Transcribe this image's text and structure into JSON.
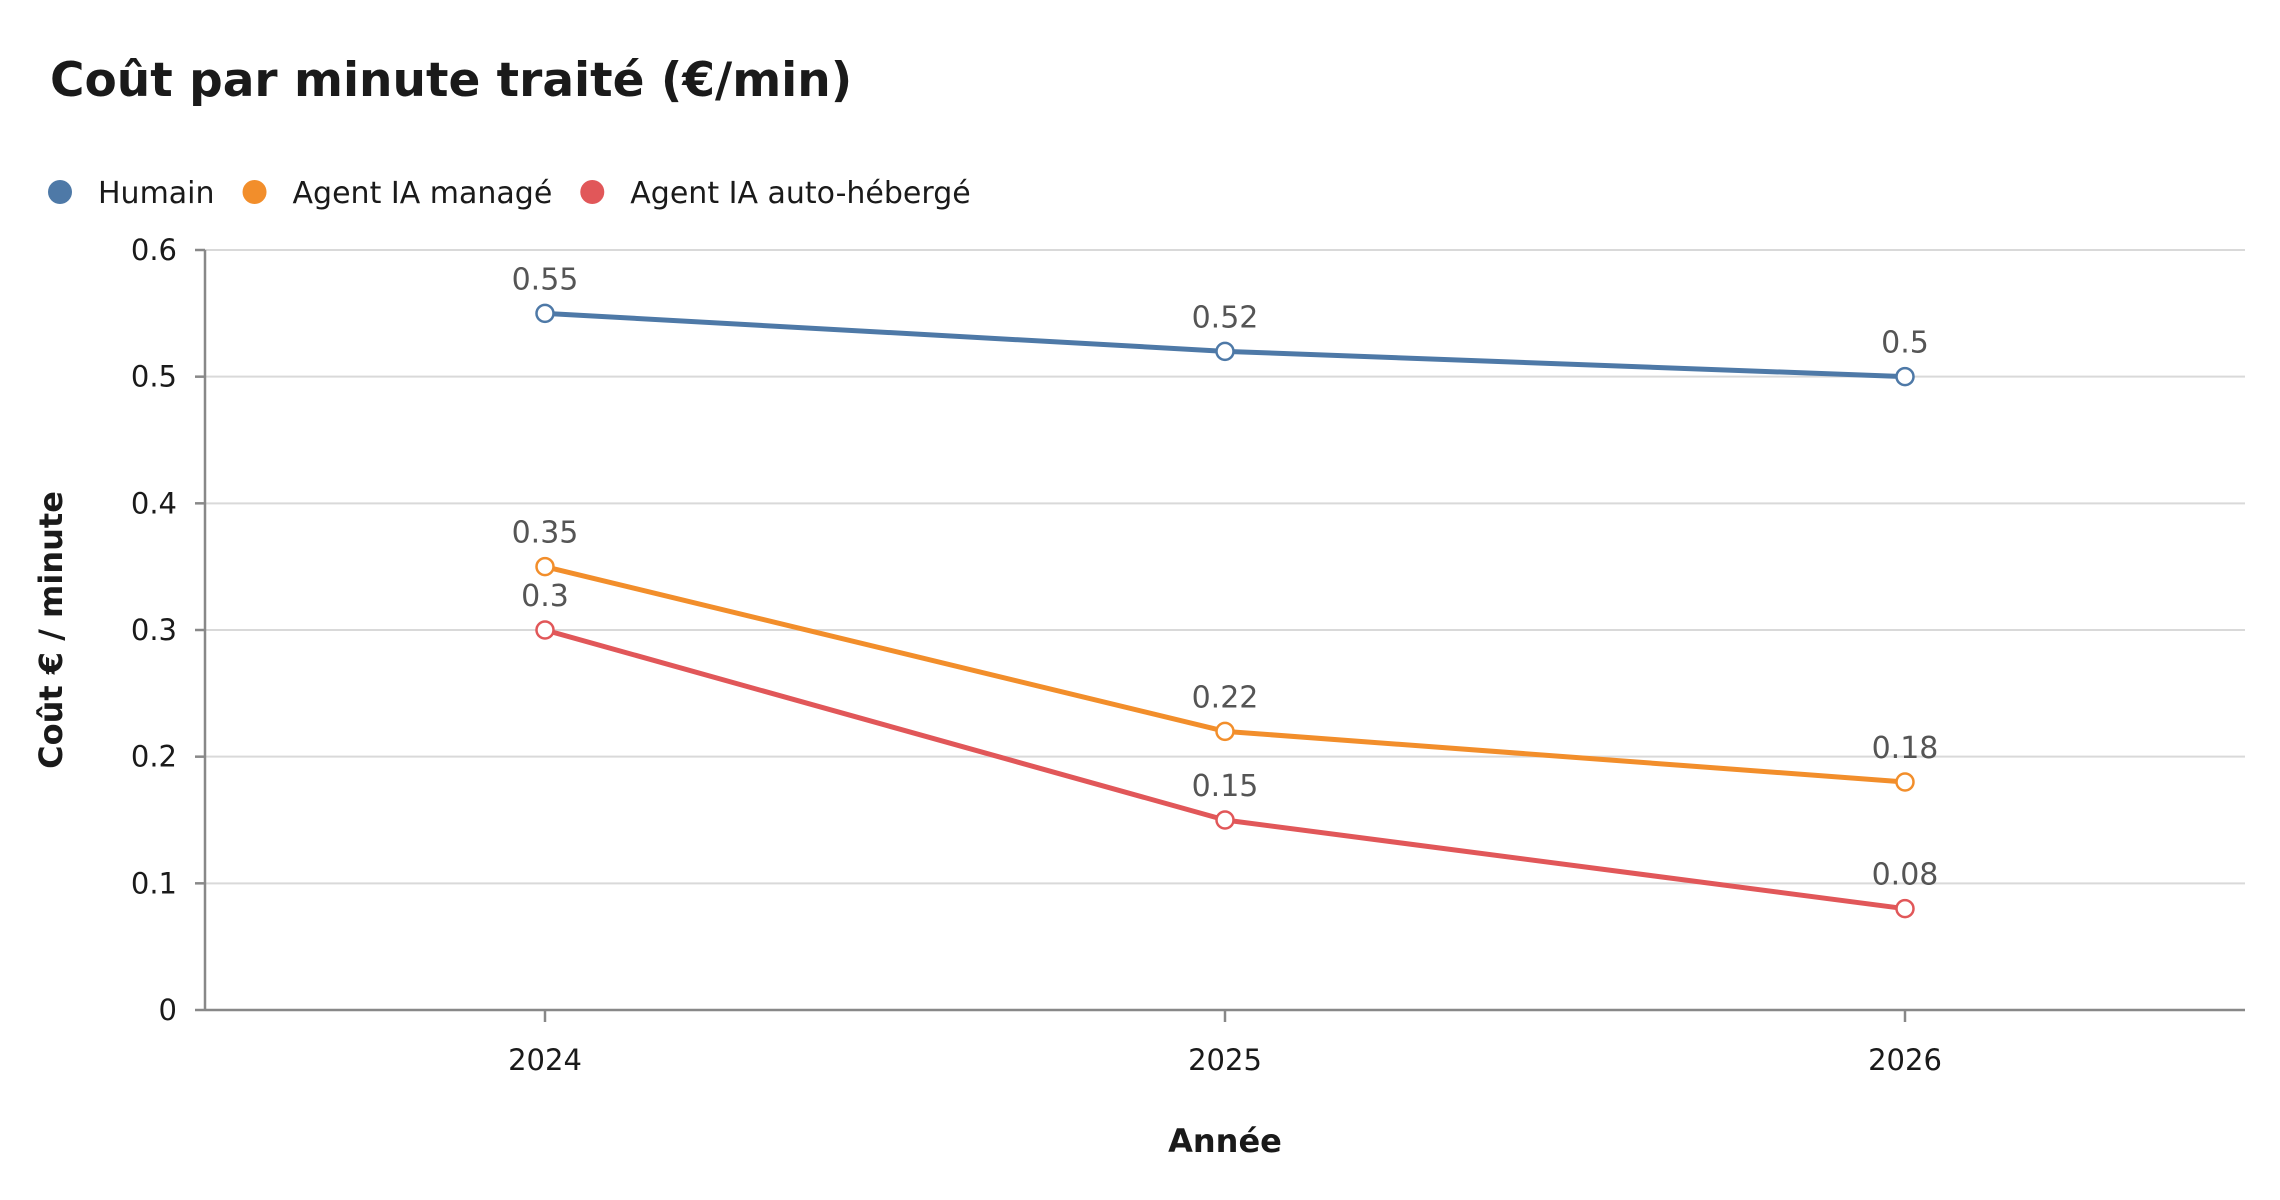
{
  "chart_data": {
    "type": "line",
    "title": "Coût par minute traité (€/min)",
    "xlabel": "Année",
    "ylabel": "Coût € / minute",
    "categories": [
      "2024",
      "2025",
      "2026"
    ],
    "ylim": [
      0,
      0.6
    ],
    "yticks": [
      0,
      0.1,
      0.2,
      0.3,
      0.4,
      0.5,
      0.6
    ],
    "ytick_labels": [
      "0",
      "0.1",
      "0.2",
      "0.3",
      "0.4",
      "0.5",
      "0.6"
    ],
    "grid": true,
    "legend_position": "top-left",
    "series": [
      {
        "name": "Humain",
        "color": "#4e79a7",
        "values": [
          0.55,
          0.52,
          0.5
        ],
        "labels": [
          "0.55",
          "0.52",
          "0.5"
        ]
      },
      {
        "name": "Agent IA managé",
        "color": "#f28e2b",
        "values": [
          0.35,
          0.22,
          0.18
        ],
        "labels": [
          "0.35",
          "0.22",
          "0.18"
        ]
      },
      {
        "name": "Agent IA auto-hébergé",
        "color": "#e15759",
        "values": [
          0.3,
          0.15,
          0.08
        ],
        "labels": [
          "0.3",
          "0.15",
          "0.08"
        ]
      }
    ]
  }
}
